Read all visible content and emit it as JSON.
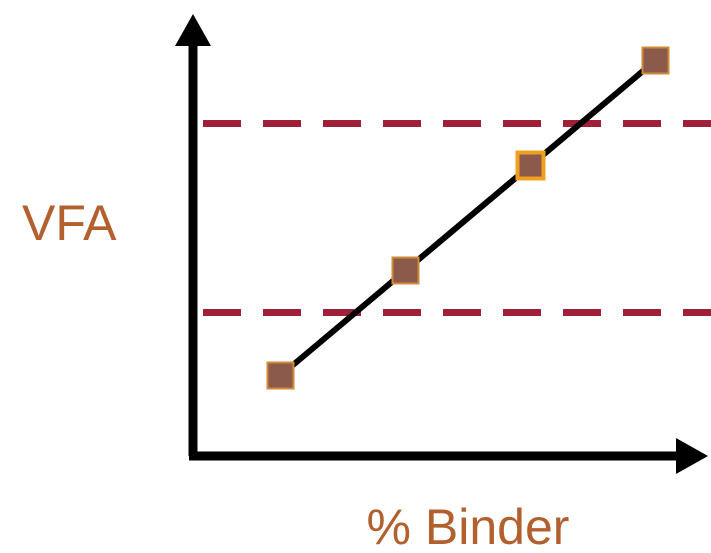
{
  "chart_data": {
    "type": "line",
    "title": "",
    "xlabel": "% Binder",
    "ylabel": "VFA",
    "x": [
      1,
      2,
      3,
      4
    ],
    "series": [
      {
        "values": [
          1,
          2,
          3,
          4
        ]
      }
    ],
    "reference_lines_y": [
      1.6,
      3.4
    ],
    "xlim": [
      0.5,
      4.5
    ],
    "ylim": [
      0.5,
      4.5
    ],
    "highlight_index": 2,
    "grid": false,
    "ticks_shown": false,
    "colors": {
      "axis": "#000000",
      "line": "#000000",
      "reference_line": "#a0203a",
      "marker_fill": "#8b5a4a",
      "marker_edge": "#d08a3a",
      "highlight_edge": "#f0a020",
      "label": "#b2602e"
    }
  }
}
